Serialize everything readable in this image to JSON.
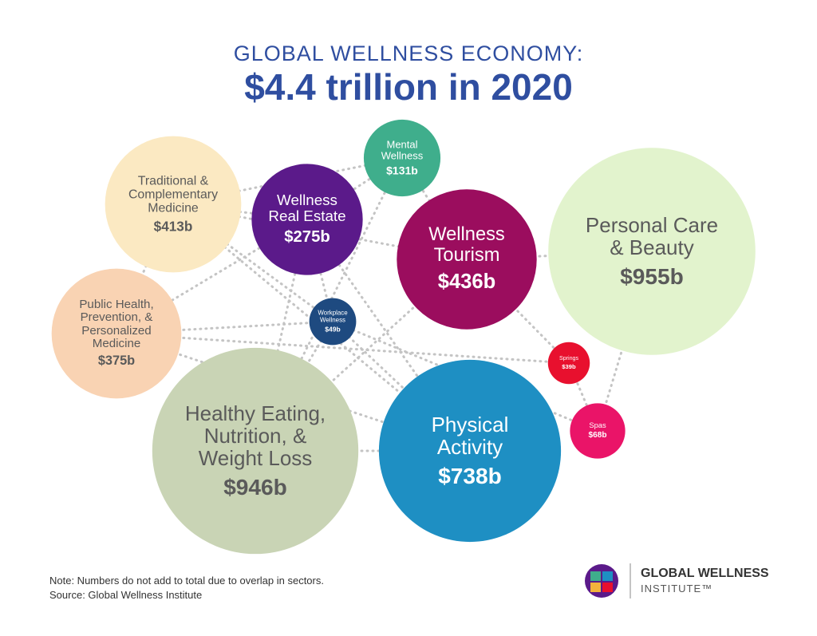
{
  "chart_data": {
    "type": "bubble",
    "title": "GLOBAL WELLNESS ECONOMY:",
    "subtitle": "$4.4 trillion in 2020",
    "categories": [
      "Traditional &\nComplementary\nMedicine",
      "Mental\nWellness",
      "Wellness\nReal Estate",
      "Wellness\nTourism",
      "Personal Care\n& Beauty",
      "Public Health,\nPrevention, &\nPersonalized\nMedicine",
      "Workplace\nWellness",
      "Springs",
      "Spas",
      "Healthy Eating,\nNutrition, &\nWeight Loss",
      "Physical\nActivity"
    ],
    "values": [
      413,
      131,
      275,
      436,
      955,
      375,
      49,
      39,
      68,
      946,
      738
    ],
    "value_labels": [
      "$413b",
      "$131b",
      "$275b",
      "$436b",
      "$955b",
      "$375b",
      "$49b",
      "$39b",
      "$68b",
      "$946b",
      "$738b"
    ],
    "colors": [
      "#fbe9c2",
      "#3fae8c",
      "#5b1a8a",
      "#9b0d5e",
      "#e2f3cd",
      "#f9d3b3",
      "#1e4a80",
      "#e8102e",
      "#ea1468",
      "#c9d4b5",
      "#1e8fc3"
    ],
    "note": "Note: Numbers do not add to total due to overlap in sectors.",
    "source": "Source: Global Wellness Institute"
  },
  "logo": {
    "name": "GLOBAL WELLNESS",
    "tagline": "INSTITUTE™"
  }
}
